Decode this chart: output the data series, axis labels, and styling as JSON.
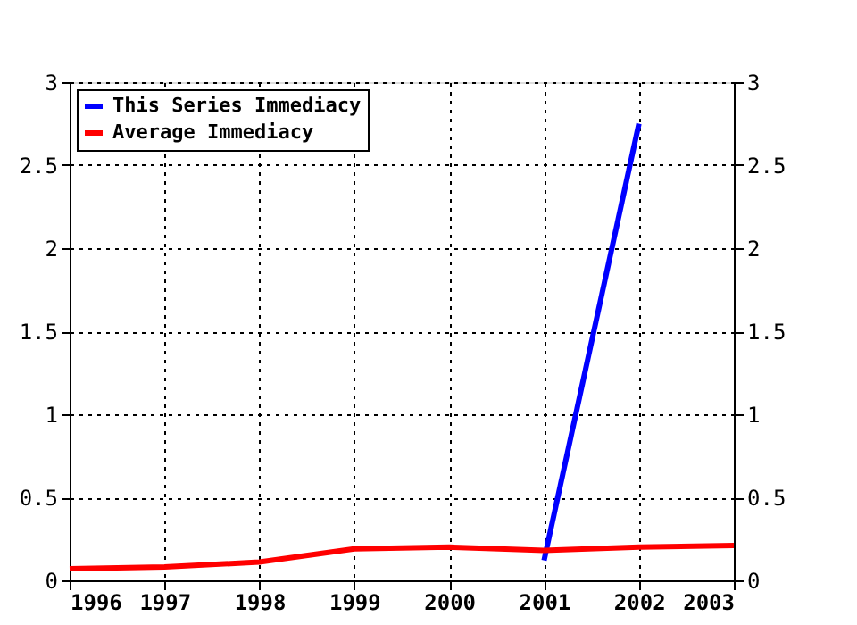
{
  "chart_data": {
    "type": "line",
    "x": [
      1996,
      1997,
      1998,
      1999,
      2000,
      2001,
      2002,
      2003
    ],
    "series": [
      {
        "name": "This Series Immediacy",
        "color": "#0000ff",
        "x": [
          2001,
          2002
        ],
        "values": [
          0.12,
          2.75
        ]
      },
      {
        "name": "Average Immediacy",
        "color": "#ff0000",
        "axis": "y2",
        "values": [
          0.07,
          0.08,
          0.11,
          0.19,
          0.2,
          0.18,
          0.2,
          0.21
        ]
      }
    ],
    "xlim": [
      1996,
      2003
    ],
    "xticks": [
      1996,
      1997,
      1998,
      1999,
      2000,
      2001,
      2002,
      2003
    ],
    "ylim": [
      0,
      3
    ],
    "yticks": [
      0,
      0.5,
      1,
      1.5,
      2,
      2.5,
      3
    ],
    "y2lim": [
      0,
      3
    ],
    "y2ticks": [
      0,
      0.5,
      1,
      1.5,
      2,
      2.5,
      3
    ],
    "grid": true,
    "legend": "top left",
    "marker": "none",
    "line_style": "solid"
  }
}
